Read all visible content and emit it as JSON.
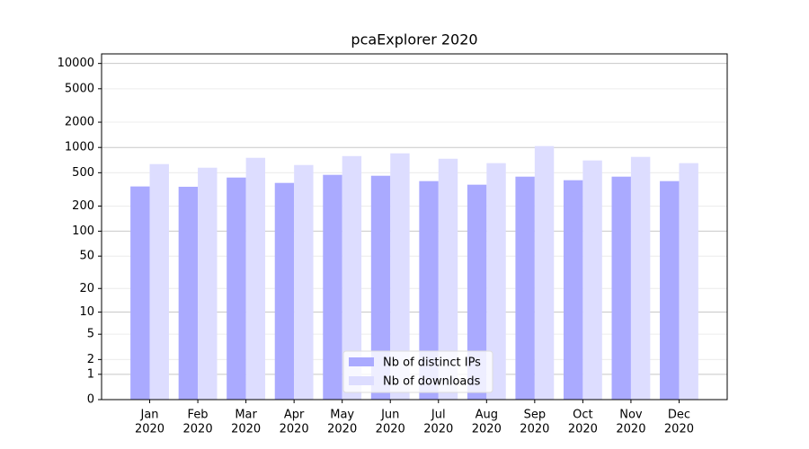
{
  "chart_data": {
    "type": "bar",
    "title": "pcaExplorer 2020",
    "categories": [
      [
        "Jan",
        "2020"
      ],
      [
        "Feb",
        "2020"
      ],
      [
        "Mar",
        "2020"
      ],
      [
        "Apr",
        "2020"
      ],
      [
        "May",
        "2020"
      ],
      [
        "Jun",
        "2020"
      ],
      [
        "Jul",
        "2020"
      ],
      [
        "Aug",
        "2020"
      ],
      [
        "Sep",
        "2020"
      ],
      [
        "Oct",
        "2020"
      ],
      [
        "Nov",
        "2020"
      ],
      [
        "Dec",
        "2020"
      ]
    ],
    "series": [
      {
        "name": "Nb of distinct IPs",
        "color": "#aaaaff",
        "values": [
          343,
          340,
          438,
          378,
          472,
          460,
          397,
          360,
          449,
          407,
          449,
          397
        ]
      },
      {
        "name": "Nb of downloads",
        "color": "#ddddff",
        "values": [
          634,
          574,
          753,
          618,
          790,
          851,
          734,
          650,
          1038,
          700,
          772,
          650
        ]
      }
    ],
    "yscale": "log1p",
    "ylim": [
      0,
      13000
    ],
    "yticks": [
      0,
      1,
      2,
      5,
      10,
      20,
      50,
      100,
      200,
      500,
      1000,
      2000,
      5000,
      10000
    ],
    "grid": true,
    "legend": "lower center"
  }
}
